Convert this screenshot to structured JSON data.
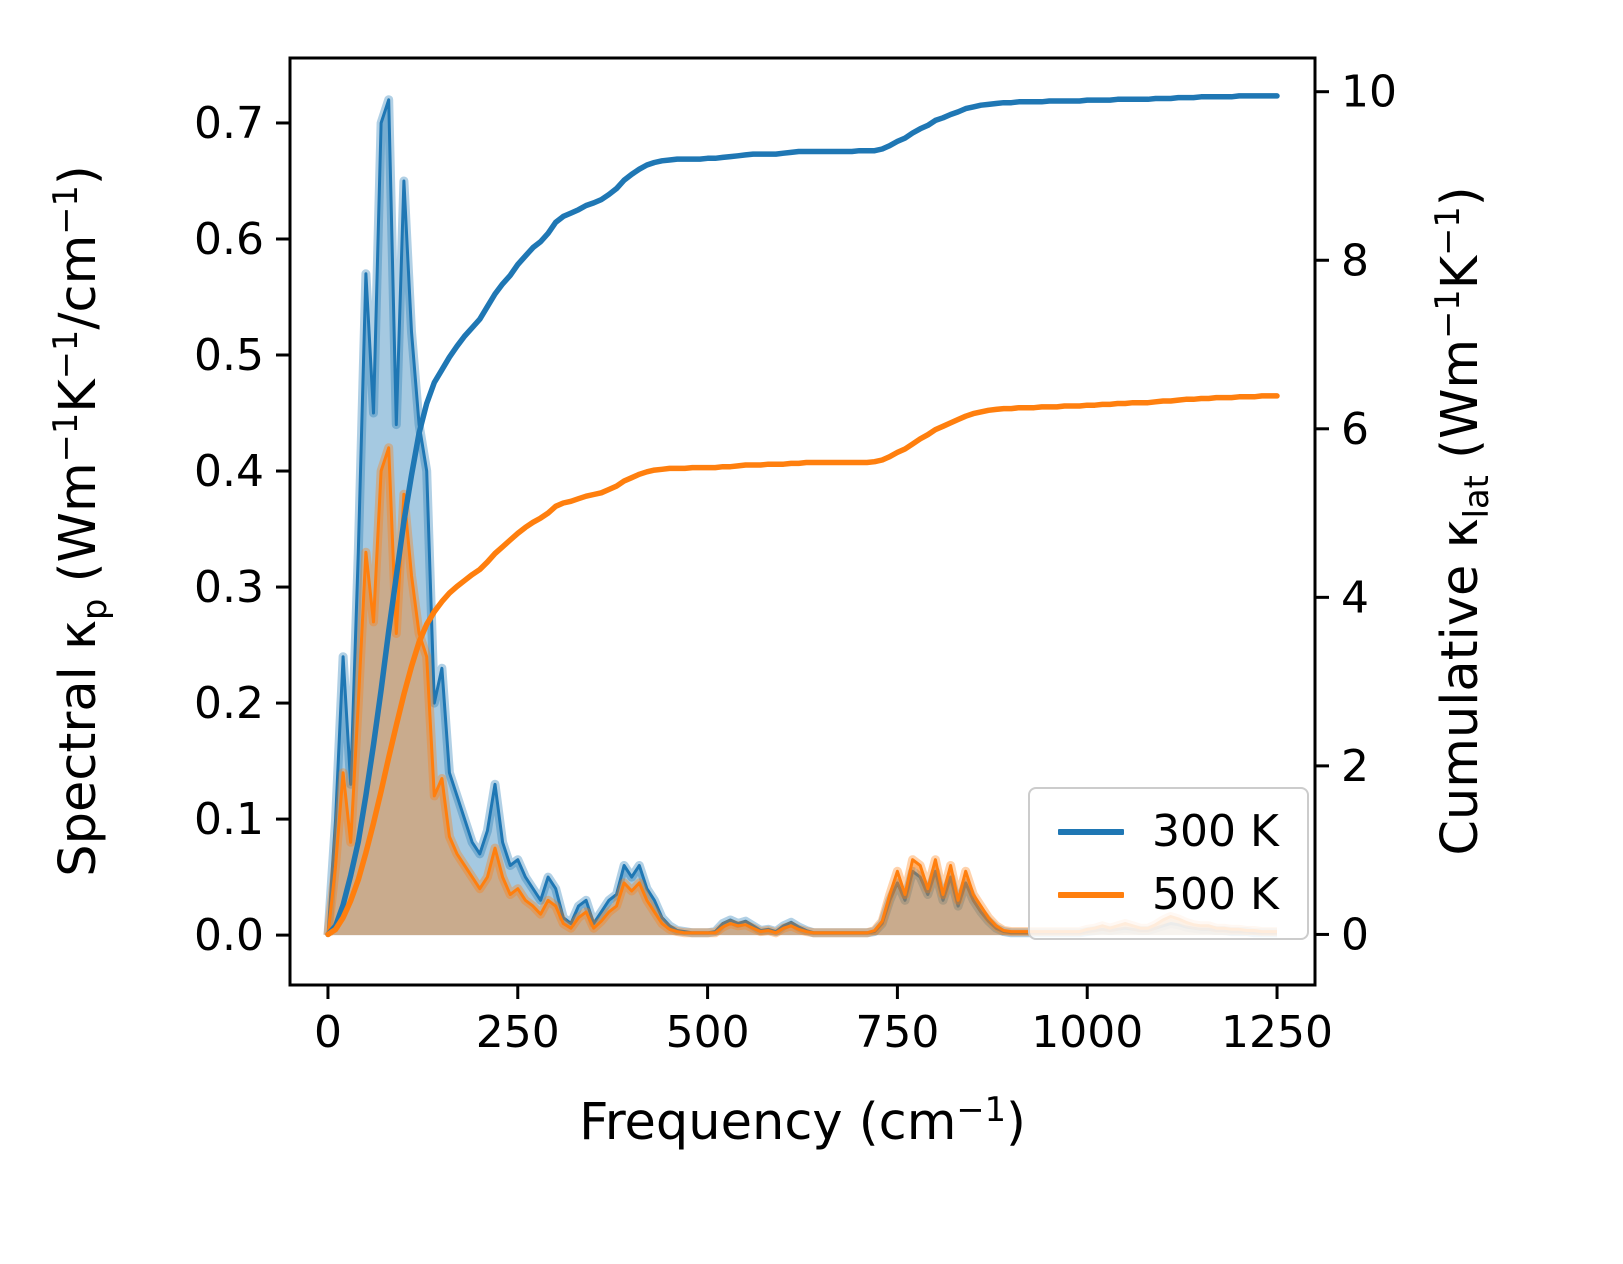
{
  "chart_data": {
    "type": "area+line",
    "title": "",
    "xlabel": "Frequency (cm−1)",
    "ylabel_left": "Spectral κp (Wm−1K−1/cm−1)",
    "ylabel_right": "Cumulative κlat (Wm−1K−1)",
    "xlabel_rich": [
      {
        "t": "Frequency (cm"
      },
      {
        "t": "−1",
        "sup": true
      },
      {
        "t": ")"
      }
    ],
    "ylabel_left_rich": [
      {
        "t": "Spectral κ"
      },
      {
        "t": "p",
        "sub": true
      },
      {
        "t": " (Wm"
      },
      {
        "t": "−1",
        "sup": true
      },
      {
        "t": "K"
      },
      {
        "t": "−1",
        "sup": true
      },
      {
        "t": "/cm"
      },
      {
        "t": "−1",
        "sup": true
      },
      {
        "t": ")"
      }
    ],
    "ylabel_right_rich": [
      {
        "t": "Cumulative κ"
      },
      {
        "t": "lat",
        "sub": true
      },
      {
        "t": " (Wm"
      },
      {
        "t": "−1",
        "sup": true
      },
      {
        "t": "K"
      },
      {
        "t": "−1",
        "sup": true
      },
      {
        "t": ")"
      }
    ],
    "x_ticks": [
      0,
      250,
      500,
      750,
      1000,
      1250
    ],
    "y_ticks_left": [
      "0.0",
      "0.1",
      "0.2",
      "0.3",
      "0.4",
      "0.5",
      "0.6",
      "0.7"
    ],
    "y_ticks_right": [
      0,
      2,
      4,
      6,
      8,
      10
    ],
    "xlim": [
      -50,
      1300
    ],
    "ylim_left": [
      -0.043,
      0.756
    ],
    "ylim_right": [
      -0.6,
      10.4
    ],
    "grid": false,
    "legend_position": "lower right",
    "x": [
      0,
      10,
      20,
      30,
      40,
      50,
      60,
      70,
      80,
      90,
      100,
      110,
      120,
      130,
      140,
      150,
      160,
      170,
      180,
      190,
      200,
      210,
      220,
      230,
      240,
      250,
      260,
      270,
      280,
      290,
      300,
      310,
      320,
      330,
      340,
      350,
      360,
      370,
      380,
      390,
      400,
      410,
      420,
      430,
      440,
      450,
      460,
      470,
      480,
      490,
      500,
      510,
      520,
      530,
      540,
      550,
      560,
      570,
      580,
      590,
      600,
      610,
      620,
      630,
      640,
      650,
      660,
      670,
      680,
      690,
      700,
      710,
      720,
      730,
      740,
      750,
      760,
      770,
      780,
      790,
      800,
      810,
      820,
      830,
      840,
      850,
      860,
      870,
      880,
      890,
      900,
      910,
      920,
      930,
      940,
      950,
      960,
      970,
      980,
      990,
      1000,
      1010,
      1020,
      1030,
      1040,
      1050,
      1060,
      1070,
      1080,
      1090,
      1100,
      1110,
      1120,
      1130,
      1140,
      1150,
      1160,
      1170,
      1180,
      1190,
      1200,
      1210,
      1220,
      1230,
      1240,
      1250
    ],
    "series": [
      {
        "name": "300 K",
        "color": "#1f77b4",
        "spectral": [
          0,
          0.1,
          0.24,
          0.13,
          0.33,
          0.57,
          0.45,
          0.7,
          0.72,
          0.44,
          0.65,
          0.52,
          0.44,
          0.4,
          0.2,
          0.23,
          0.14,
          0.12,
          0.1,
          0.08,
          0.07,
          0.09,
          0.13,
          0.08,
          0.06,
          0.065,
          0.05,
          0.04,
          0.03,
          0.05,
          0.04,
          0.015,
          0.01,
          0.025,
          0.03,
          0.01,
          0.02,
          0.03,
          0.035,
          0.06,
          0.05,
          0.06,
          0.04,
          0.03,
          0.015,
          0.008,
          0.004,
          0.003,
          0.002,
          0.002,
          0.002,
          0.003,
          0.01,
          0.013,
          0.01,
          0.012,
          0.008,
          0.004,
          0.005,
          0.003,
          0.008,
          0.011,
          0.007,
          0.004,
          0.002,
          0.002,
          0.002,
          0.002,
          0.002,
          0.002,
          0.002,
          0.002,
          0.003,
          0.01,
          0.03,
          0.045,
          0.03,
          0.055,
          0.05,
          0.035,
          0.055,
          0.03,
          0.05,
          0.025,
          0.045,
          0.03,
          0.02,
          0.012,
          0.006,
          0.003,
          0.002,
          0.002,
          0.002,
          0.002,
          0.002,
          0.002,
          0.002,
          0.002,
          0.002,
          0.002,
          0.003,
          0.004,
          0.005,
          0.004,
          0.005,
          0.006,
          0.005,
          0.004,
          0.004,
          0.006,
          0.008,
          0.01,
          0.009,
          0.007,
          0.006,
          0.005,
          0.005,
          0.004,
          0.004,
          0.003,
          0.003,
          0.003,
          0.002,
          0.002,
          0.002,
          0.002
        ],
        "cumulative": [
          0,
          0.1,
          0.35,
          0.7,
          1.1,
          1.65,
          2.25,
          2.9,
          3.6,
          4.25,
          4.9,
          5.45,
          5.95,
          6.3,
          6.55,
          6.7,
          6.85,
          6.98,
          7.1,
          7.2,
          7.3,
          7.45,
          7.6,
          7.72,
          7.82,
          7.95,
          8.05,
          8.15,
          8.22,
          8.32,
          8.45,
          8.52,
          8.56,
          8.6,
          8.65,
          8.68,
          8.72,
          8.78,
          8.85,
          8.95,
          9.02,
          9.08,
          9.13,
          9.16,
          9.18,
          9.19,
          9.2,
          9.2,
          9.2,
          9.2,
          9.21,
          9.21,
          9.22,
          9.23,
          9.24,
          9.25,
          9.26,
          9.26,
          9.26,
          9.26,
          9.27,
          9.28,
          9.29,
          9.29,
          9.29,
          9.29,
          9.29,
          9.29,
          9.29,
          9.29,
          9.3,
          9.3,
          9.3,
          9.32,
          9.36,
          9.41,
          9.45,
          9.51,
          9.56,
          9.6,
          9.66,
          9.69,
          9.73,
          9.76,
          9.8,
          9.82,
          9.84,
          9.85,
          9.86,
          9.87,
          9.87,
          9.88,
          9.88,
          9.88,
          9.88,
          9.89,
          9.89,
          9.89,
          9.89,
          9.89,
          9.9,
          9.9,
          9.9,
          9.9,
          9.91,
          9.91,
          9.91,
          9.91,
          9.91,
          9.92,
          9.92,
          9.92,
          9.93,
          9.93,
          9.93,
          9.94,
          9.94,
          9.94,
          9.94,
          9.94,
          9.95,
          9.95,
          9.95,
          9.95,
          9.95,
          9.95
        ]
      },
      {
        "name": "500 K",
        "color": "#ff7f0e",
        "spectral": [
          0,
          0.06,
          0.14,
          0.08,
          0.2,
          0.33,
          0.27,
          0.4,
          0.42,
          0.26,
          0.38,
          0.31,
          0.26,
          0.24,
          0.12,
          0.135,
          0.085,
          0.07,
          0.06,
          0.05,
          0.04,
          0.05,
          0.075,
          0.05,
          0.035,
          0.04,
          0.03,
          0.025,
          0.018,
          0.03,
          0.025,
          0.01,
          0.006,
          0.015,
          0.02,
          0.006,
          0.012,
          0.02,
          0.025,
          0.045,
          0.038,
          0.045,
          0.03,
          0.02,
          0.01,
          0.005,
          0.003,
          0.002,
          0.002,
          0.002,
          0.002,
          0.002,
          0.007,
          0.01,
          0.008,
          0.009,
          0.006,
          0.003,
          0.004,
          0.002,
          0.006,
          0.008,
          0.005,
          0.003,
          0.002,
          0.002,
          0.002,
          0.002,
          0.002,
          0.002,
          0.002,
          0.002,
          0.004,
          0.012,
          0.035,
          0.055,
          0.035,
          0.065,
          0.06,
          0.04,
          0.065,
          0.035,
          0.06,
          0.03,
          0.055,
          0.035,
          0.025,
          0.015,
          0.008,
          0.004,
          0.003,
          0.003,
          0.003,
          0.003,
          0.003,
          0.003,
          0.003,
          0.003,
          0.003,
          0.003,
          0.005,
          0.006,
          0.008,
          0.006,
          0.008,
          0.01,
          0.008,
          0.006,
          0.006,
          0.009,
          0.013,
          0.016,
          0.014,
          0.011,
          0.009,
          0.008,
          0.008,
          0.006,
          0.006,
          0.005,
          0.005,
          0.004,
          0.004,
          0.003,
          0.003,
          0.003
        ],
        "cumulative": [
          0,
          0.06,
          0.2,
          0.4,
          0.65,
          0.97,
          1.32,
          1.7,
          2.1,
          2.48,
          2.85,
          3.18,
          3.47,
          3.68,
          3.83,
          3.95,
          4.05,
          4.13,
          4.2,
          4.27,
          4.33,
          4.42,
          4.52,
          4.6,
          4.68,
          4.76,
          4.83,
          4.89,
          4.94,
          5.0,
          5.08,
          5.12,
          5.14,
          5.17,
          5.2,
          5.22,
          5.24,
          5.28,
          5.32,
          5.38,
          5.42,
          5.46,
          5.49,
          5.51,
          5.52,
          5.53,
          5.53,
          5.53,
          5.54,
          5.54,
          5.54,
          5.54,
          5.55,
          5.55,
          5.56,
          5.57,
          5.57,
          5.57,
          5.58,
          5.58,
          5.58,
          5.59,
          5.59,
          5.6,
          5.6,
          5.6,
          5.6,
          5.6,
          5.6,
          5.6,
          5.6,
          5.6,
          5.61,
          5.63,
          5.67,
          5.72,
          5.76,
          5.82,
          5.88,
          5.93,
          5.99,
          6.03,
          6.07,
          6.11,
          6.15,
          6.18,
          6.2,
          6.22,
          6.23,
          6.24,
          6.24,
          6.25,
          6.25,
          6.25,
          6.26,
          6.26,
          6.26,
          6.27,
          6.27,
          6.27,
          6.28,
          6.28,
          6.29,
          6.29,
          6.3,
          6.3,
          6.31,
          6.31,
          6.31,
          6.32,
          6.33,
          6.33,
          6.34,
          6.35,
          6.35,
          6.36,
          6.36,
          6.37,
          6.37,
          6.37,
          6.38,
          6.38,
          6.38,
          6.39,
          6.39,
          6.39
        ]
      }
    ]
  },
  "legend": {
    "items": [
      {
        "label": "300 K"
      },
      {
        "label": "500 K"
      }
    ]
  }
}
